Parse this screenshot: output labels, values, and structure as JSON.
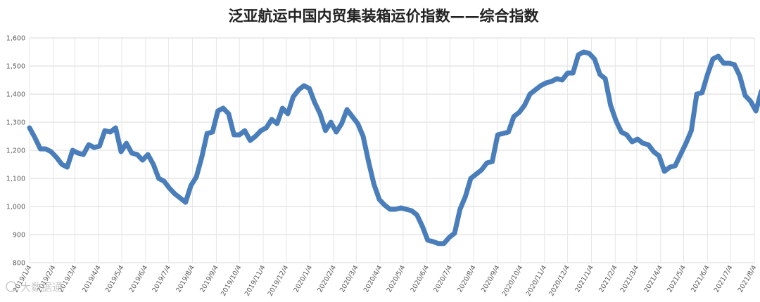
{
  "chart_data": {
    "type": "line",
    "title": "泛亚航运中国内贸集装箱运价指数——综合指数",
    "xlabel": "",
    "ylabel": "",
    "ylim": [
      800,
      1600
    ],
    "y_ticks": [
      "800",
      "900",
      "1,000",
      "1,100",
      "1,200",
      "1,300",
      "1,400",
      "1,500",
      "1,600"
    ],
    "y_tick_values": [
      800,
      900,
      1000,
      1100,
      1200,
      1300,
      1400,
      1500,
      1600
    ],
    "x_ticks": [
      "2019/1/4",
      "2019/2/4",
      "2019/3/4",
      "2019/4/4",
      "2019/5/4",
      "2019/6/4",
      "2019/7/4",
      "2019/8/4",
      "2019/9/4",
      "2019/10/4",
      "2019/11/4",
      "2019/12/4",
      "2020/1/4",
      "2020/2/4",
      "2020/3/4",
      "2020/4/4",
      "2020/5/4",
      "2020/6/4",
      "2020/7/4",
      "2020/8/4",
      "2020/9/4",
      "2020/10/4",
      "2020/11/4",
      "2020/12/4",
      "2021/1/4",
      "2021/2/4",
      "2021/3/4",
      "2021/4/4",
      "2021/5/4",
      "2021/6/4",
      "2021/7/4",
      "2021/8/4"
    ],
    "grid": true,
    "legend": "none",
    "color": "#4a7ebb",
    "series": [
      {
        "x": [
          "2019/1/4",
          "2019/1/11",
          "2019/1/18",
          "2019/1/25",
          "2019/2/1",
          "2019/2/8",
          "2019/2/15",
          "2019/2/22",
          "2019/3/1",
          "2019/3/8",
          "2019/3/15",
          "2019/3/22",
          "2019/3/29",
          "2019/4/5",
          "2019/4/12",
          "2019/4/19",
          "2019/4/26",
          "2019/5/3",
          "2019/5/10",
          "2019/5/17",
          "2019/5/24",
          "2019/5/31",
          "2019/6/7",
          "2019/6/14",
          "2019/6/21",
          "2019/6/28",
          "2019/7/5",
          "2019/7/12",
          "2019/7/19",
          "2019/7/26",
          "2019/8/2",
          "2019/8/9",
          "2019/8/16",
          "2019/8/23",
          "2019/8/30",
          "2019/9/6",
          "2019/9/13",
          "2019/9/20",
          "2019/9/27",
          "2019/10/4",
          "2019/10/11",
          "2019/10/18",
          "2019/10/25",
          "2019/11/1",
          "2019/11/8",
          "2019/11/15",
          "2019/11/22",
          "2019/11/29",
          "2019/12/6",
          "2019/12/13",
          "2019/12/20",
          "2019/12/27",
          "2020/1/3",
          "2020/1/10",
          "2020/1/17",
          "2020/1/24",
          "2020/1/31",
          "2020/2/7",
          "2020/2/14",
          "2020/2/21",
          "2020/2/28",
          "2020/3/6",
          "2020/3/13",
          "2020/3/20",
          "2020/3/27",
          "2020/4/3",
          "2020/4/10",
          "2020/4/17",
          "2020/4/24",
          "2020/5/1",
          "2020/5/8",
          "2020/5/15",
          "2020/5/22",
          "2020/5/29",
          "2020/6/5",
          "2020/6/12",
          "2020/6/19",
          "2020/6/26",
          "2020/7/3",
          "2020/7/10",
          "2020/7/17",
          "2020/7/24",
          "2020/7/31",
          "2020/8/7",
          "2020/8/14",
          "2020/8/21",
          "2020/8/28",
          "2020/9/4",
          "2020/9/11",
          "2020/9/18",
          "2020/9/25",
          "2020/10/2",
          "2020/10/9",
          "2020/10/16",
          "2020/10/23",
          "2020/10/30",
          "2020/11/6",
          "2020/11/13",
          "2020/11/20",
          "2020/11/27",
          "2020/12/4",
          "2020/12/11",
          "2020/12/18",
          "2020/12/25",
          "2021/1/1",
          "2021/1/8",
          "2021/1/15",
          "2021/1/22",
          "2021/1/29",
          "2021/2/5",
          "2021/2/12",
          "2021/2/19",
          "2021/2/26",
          "2021/3/5",
          "2021/3/12",
          "2021/3/19",
          "2021/3/26",
          "2021/4/2",
          "2021/4/9",
          "2021/4/16",
          "2021/4/23",
          "2021/4/30",
          "2021/5/7",
          "2021/5/14",
          "2021/5/21",
          "2021/5/28",
          "2021/6/4",
          "2021/6/11",
          "2021/6/18",
          "2021/6/25",
          "2021/7/2",
          "2021/7/9",
          "2021/7/16",
          "2021/7/23",
          "2021/7/30",
          "2021/8/6",
          "2021/8/13"
        ],
        "values": [
          1280,
          1245,
          1205,
          1205,
          1195,
          1175,
          1150,
          1140,
          1200,
          1190,
          1185,
          1220,
          1210,
          1215,
          1270,
          1265,
          1280,
          1195,
          1225,
          1190,
          1185,
          1165,
          1185,
          1150,
          1100,
          1090,
          1065,
          1045,
          1030,
          1015,
          1075,
          1105,
          1175,
          1260,
          1265,
          1340,
          1350,
          1330,
          1255,
          1255,
          1270,
          1235,
          1250,
          1270,
          1280,
          1310,
          1295,
          1350,
          1330,
          1390,
          1415,
          1430,
          1420,
          1370,
          1330,
          1270,
          1300,
          1265,
          1295,
          1345,
          1320,
          1295,
          1250,
          1160,
          1080,
          1025,
          1005,
          990,
          990,
          995,
          990,
          985,
          970,
          930,
          880,
          875,
          868,
          868,
          890,
          905,
          990,
          1035,
          1100,
          1115,
          1130,
          1155,
          1160,
          1255,
          1260,
          1265,
          1320,
          1335,
          1360,
          1400,
          1415,
          1430,
          1440,
          1445,
          1455,
          1450,
          1475,
          1475,
          1540,
          1550,
          1545,
          1525,
          1470,
          1455,
          1360,
          1305,
          1265,
          1255,
          1230,
          1240,
          1225,
          1220,
          1195,
          1180,
          1125,
          1140,
          1145,
          1185,
          1225,
          1270,
          1400,
          1405,
          1470,
          1525,
          1535,
          1510,
          1510,
          1505,
          1465,
          1395,
          1375,
          1340,
          1410
        ]
      }
    ],
    "watermark": "大数据通"
  }
}
